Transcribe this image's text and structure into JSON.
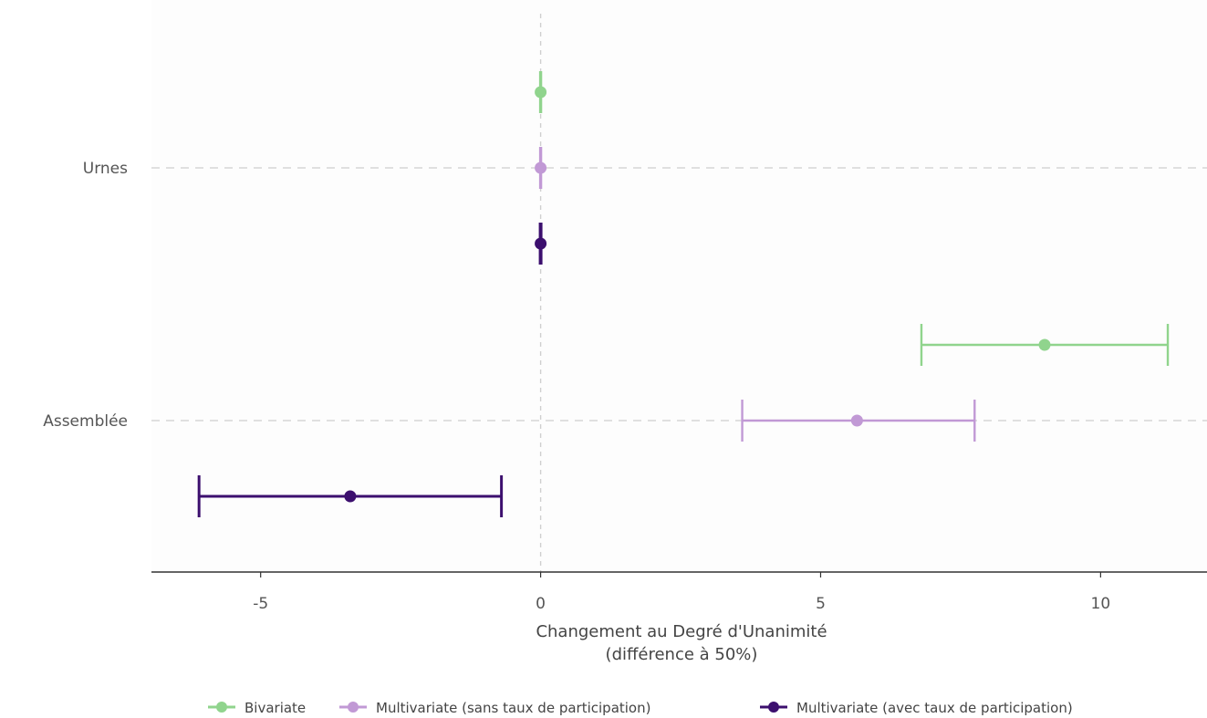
{
  "chart_data": {
    "type": "scatter",
    "categories": [
      "Urnes",
      "Assemblée"
    ],
    "xlabel": [
      "Changement au Degré d'Unanimité",
      "(différence à 50%)"
    ],
    "ylabel": "",
    "xlim": [
      -6.95,
      11.9
    ],
    "xticks": [
      -5,
      0,
      5,
      10
    ],
    "reference_line_x": 0,
    "grid": "horizontal dashed",
    "legend_position": "bottom",
    "series": [
      {
        "name": "Bivariate",
        "color": "#90d48d",
        "points": [
          {
            "category": "Urnes",
            "estimate": 0.0,
            "low": 0.0,
            "high": 0.0
          },
          {
            "category": "Assemblée",
            "estimate": 9.0,
            "low": 6.8,
            "high": 11.2
          }
        ]
      },
      {
        "name": "Multivariate (sans taux de participation)",
        "color": "#c199d5",
        "points": [
          {
            "category": "Urnes",
            "estimate": 0.0,
            "low": 0.0,
            "high": 0.0
          },
          {
            "category": "Assemblée",
            "estimate": 5.65,
            "low": 3.6,
            "high": 7.75
          }
        ]
      },
      {
        "name": "Multivariate (avec taux de participation)",
        "color": "#3c0f6e",
        "points": [
          {
            "category": "Urnes",
            "estimate": 0.0,
            "low": 0.0,
            "high": 0.0
          },
          {
            "category": "Assemblée",
            "estimate": -3.4,
            "low": -6.1,
            "high": -0.7
          }
        ]
      }
    ]
  }
}
